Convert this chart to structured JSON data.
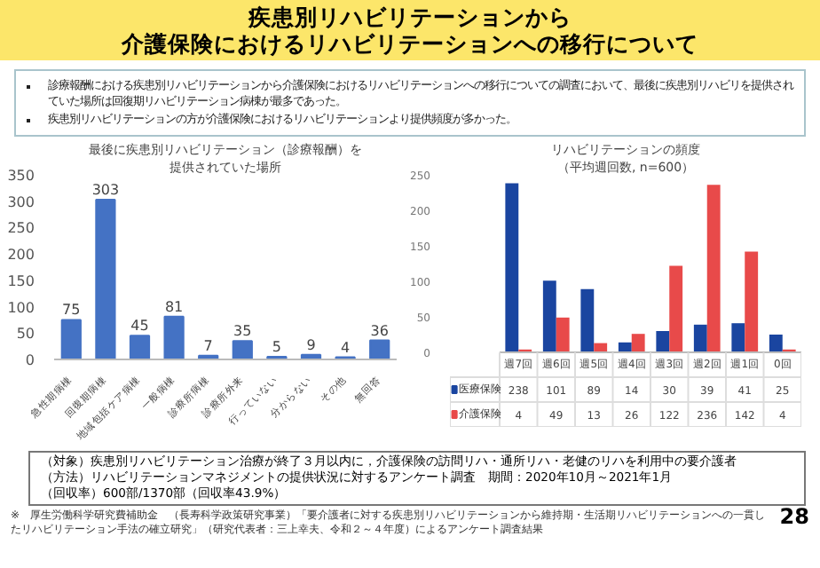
{
  "chart_data": [
    {
      "type": "other",
      "title": "疾患別リハビリテーションから",
      "subtitle": "介護保険におけるリハビリテーションへの移行について",
      "annotations": [
        "診療報酬における疾患別リハビリテーションから介護保険におけるリハビリテーションへの移行についての調査において、最後に疾患別リハビリを提供されていた場所は回復期リハビリテーション病棟が最多であった。",
        "疾患別リハビリテーションの方が介護保険におけるリハビリテーションより提供頻度が多かった。"
      ]
    },
    {
      "type": "bar",
      "title": "最後に疾患別リハビリテーション（診療報酬）を",
      "subtitle": "提供されていた場所",
      "categories": [
        "急性期病棟",
        "回復期病棟",
        "地域包括ケア病棟",
        "一般病棟",
        "診療所病棟",
        "診療所外来",
        "行っていない",
        "分からない",
        "その他",
        "無回答"
      ],
      "values": [
        75,
        303,
        45,
        81,
        7,
        35,
        5,
        9,
        4,
        36
      ],
      "color": "#4472c4",
      "ylim": [
        0,
        350
      ],
      "yticks": [
        0,
        50,
        100,
        150,
        200,
        250,
        300,
        350
      ],
      "data_labels": true
    },
    {
      "type": "bar",
      "title": "リハビリテーションの頻度",
      "subtitle": "（平均週回数, n=600）",
      "categories": [
        "週7回",
        "週6回",
        "週5回",
        "週4回",
        "週3回",
        "週2回",
        "週1回",
        "0回"
      ],
      "series": [
        {
          "name": "医療保険",
          "color": "#1a45a0",
          "values": [
            238,
            101,
            89,
            14,
            30,
            39,
            41,
            25
          ]
        },
        {
          "name": "介護保険",
          "color": "#e84a4a",
          "values": [
            4,
            49,
            13,
            26,
            122,
            236,
            142,
            4
          ]
        }
      ],
      "ylim": [
        0,
        250
      ],
      "yticks": [
        0,
        50,
        100,
        150,
        200,
        250
      ],
      "data_labels": true,
      "legend": "bottom left"
    },
    {
      "type": "other",
      "annotations": [
        "（対象）疾患別リハビリテーション治療が終了３月以内に，介護保険の訪問リハ・通所リハ・老健のリハを利用中の要介護者",
        "（方法）リハビリテーションマネジメントの提供状況に対するアンケート調査　期間：2020年10月～2021年1月",
        "（回収率）600部/1370部（回収率43.9%）",
        "※　厚生労働科学研究費補助金　（長寿科学政策研究事業）「要介護者に対する疾患別リハビリテーションから維持期・生活期リハビリテーションへの一貫したリハビリテーション手法の確立研究」（研究代表者：三上幸夫、令和２～４年度）によるアンケート調査結果",
        "28"
      ]
    }
  ]
}
